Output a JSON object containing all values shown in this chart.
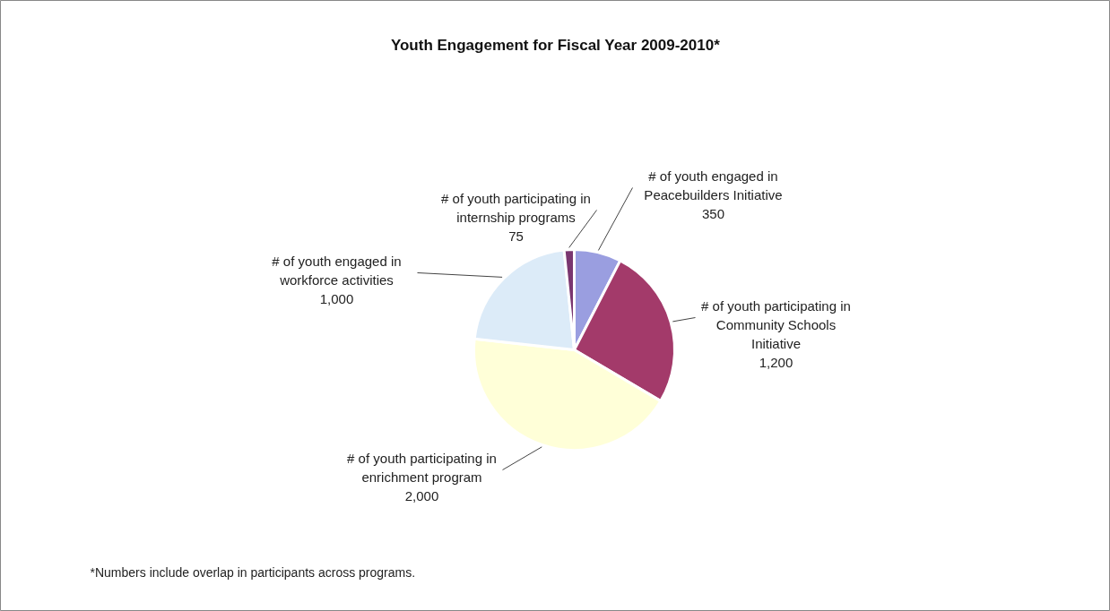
{
  "chart_data": {
    "type": "pie",
    "title": "Youth Engagement for Fiscal Year 2009-2010*",
    "categories": [
      "# of youth engaged in\nPeacebuilders Initiative",
      "# of youth participating in\nCommunity Schools\nInitiative",
      "# of youth participating in\nenrichment program",
      "# of youth engaged in\nworkforce activities",
      "# of youth participating in\ninternship programs"
    ],
    "values": [
      350,
      1200,
      2000,
      1000,
      75
    ],
    "value_labels": [
      "350",
      "1,200",
      "2,000",
      "1,000",
      "75"
    ],
    "colors": [
      "#9a9ee0",
      "#a33a6a",
      "#ffffd8",
      "#dcebf8",
      "#7a3670"
    ],
    "annotations": [
      "*Numbers include overlap in participants across programs."
    ]
  }
}
